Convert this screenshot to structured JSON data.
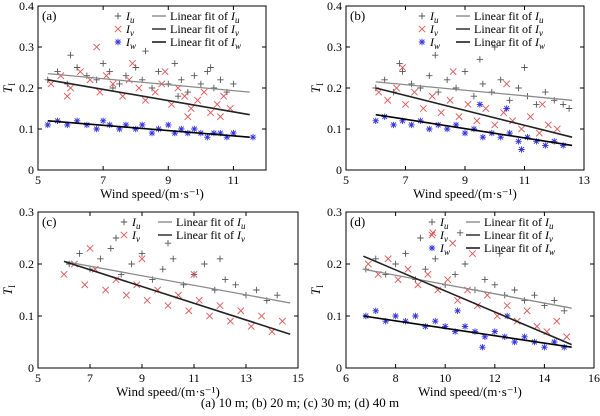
{
  "figure": {
    "caption": "(a) 10 m; (b) 20 m; (c) 30 m; (d) 40 m",
    "colors": {
      "u": "#555555",
      "v": "#e05555",
      "w": "#3333dd",
      "fit_u": "#8a8a8a",
      "fit_v": "#222222",
      "fit_w": "#000000"
    }
  },
  "chart_data": [
    {
      "panel": "(a)",
      "type": "scatter",
      "xlabel": "Wind speed/(m·s⁻¹)",
      "ylabel": "T",
      "ylabel_sub": "I",
      "xlim": [
        5,
        12
      ],
      "ylim": [
        0,
        0.4
      ],
      "xticks": [
        5,
        7,
        9,
        11
      ],
      "yticks": [
        0,
        0.1,
        0.2,
        0.3,
        0.4
      ],
      "legend": [
        {
          "key": "u",
          "marker": "+",
          "label": "I",
          "sub": "u",
          "fit": "Linear fit of I",
          "fit_sub": "u"
        },
        {
          "key": "v",
          "marker": "×",
          "label": "I",
          "sub": "v",
          "fit": "Linear fit of I",
          "fit_sub": "v"
        },
        {
          "key": "w",
          "marker": "*",
          "label": "I",
          "sub": "w",
          "fit": "Linear fit of I",
          "fit_sub": "w"
        }
      ],
      "series": [
        {
          "key": "u",
          "marker": "+",
          "x": [
            5.3,
            5.6,
            5.9,
            6.2,
            6.5,
            6.8,
            7.0,
            7.2,
            7.5,
            7.7,
            8.0,
            8.2,
            8.5,
            8.7,
            9.0,
            9.2,
            9.4,
            9.6,
            9.8,
            10.0,
            10.2,
            10.4,
            10.6,
            10.8,
            11.0,
            6.0,
            7.3,
            8.3,
            9.3,
            10.3
          ],
          "y": [
            0.22,
            0.24,
            0.21,
            0.25,
            0.23,
            0.22,
            0.26,
            0.24,
            0.21,
            0.23,
            0.25,
            0.22,
            0.2,
            0.24,
            0.21,
            0.26,
            0.22,
            0.19,
            0.23,
            0.21,
            0.24,
            0.2,
            0.22,
            0.19,
            0.21,
            0.28,
            0.2,
            0.29,
            0.18,
            0.25
          ]
        },
        {
          "key": "v",
          "marker": "×",
          "x": [
            5.4,
            5.7,
            6.0,
            6.3,
            6.6,
            6.9,
            7.1,
            7.3,
            7.6,
            7.8,
            8.1,
            8.3,
            8.6,
            8.8,
            9.1,
            9.3,
            9.5,
            9.7,
            9.9,
            10.1,
            10.3,
            10.5,
            10.7,
            10.9,
            6.8,
            7.9,
            8.9,
            9.6,
            10.6,
            5.9
          ],
          "y": [
            0.21,
            0.23,
            0.2,
            0.24,
            0.22,
            0.19,
            0.23,
            0.21,
            0.18,
            0.22,
            0.2,
            0.17,
            0.19,
            0.21,
            0.16,
            0.2,
            0.18,
            0.15,
            0.17,
            0.19,
            0.14,
            0.16,
            0.18,
            0.15,
            0.3,
            0.26,
            0.24,
            0.13,
            0.13,
            0.18
          ]
        },
        {
          "key": "w",
          "marker": "*",
          "x": [
            5.3,
            5.6,
            5.9,
            6.2,
            6.5,
            6.8,
            7.0,
            7.2,
            7.5,
            7.7,
            8.0,
            8.2,
            8.5,
            8.7,
            9.0,
            9.2,
            9.4,
            9.6,
            9.8,
            10.0,
            10.2,
            10.4,
            10.6,
            10.8,
            11.0,
            11.6
          ],
          "y": [
            0.11,
            0.12,
            0.11,
            0.12,
            0.11,
            0.1,
            0.12,
            0.11,
            0.1,
            0.11,
            0.1,
            0.11,
            0.09,
            0.1,
            0.11,
            0.09,
            0.1,
            0.09,
            0.1,
            0.09,
            0.08,
            0.09,
            0.09,
            0.08,
            0.09,
            0.08
          ]
        }
      ],
      "fits": [
        {
          "key": "u",
          "x": [
            5.3,
            11.5
          ],
          "y": [
            0.235,
            0.19
          ]
        },
        {
          "key": "v",
          "x": [
            5.3,
            11.5
          ],
          "y": [
            0.22,
            0.135
          ]
        },
        {
          "key": "w",
          "x": [
            5.3,
            11.5
          ],
          "y": [
            0.12,
            0.08
          ]
        }
      ]
    },
    {
      "panel": "(b)",
      "type": "scatter",
      "xlabel": "Wind speed/(m·s⁻¹)",
      "ylabel": "T",
      "ylabel_sub": "I",
      "xlim": [
        5,
        13
      ],
      "ylim": [
        0,
        0.4
      ],
      "xticks": [
        5,
        7,
        9,
        11,
        13
      ],
      "yticks": [
        0,
        0.1,
        0.2,
        0.3,
        0.4
      ],
      "legend": [
        {
          "key": "u",
          "marker": "+",
          "label": "I",
          "sub": "u",
          "fit": "Linear fit of I",
          "fit_sub": "u"
        },
        {
          "key": "v",
          "marker": "×",
          "label": "I",
          "sub": "v",
          "fit": "Linear fit of I",
          "fit_sub": "v"
        },
        {
          "key": "w",
          "marker": "*",
          "label": "I",
          "sub": "w",
          "fit": "Linear fit of I",
          "fit_sub": "w"
        }
      ],
      "series": [
        {
          "key": "u",
          "marker": "+",
          "x": [
            6.0,
            6.3,
            6.6,
            6.9,
            7.2,
            7.5,
            7.8,
            8.1,
            8.4,
            8.7,
            9.0,
            9.3,
            9.6,
            9.9,
            10.2,
            10.5,
            10.8,
            11.1,
            11.4,
            11.7,
            12.0,
            12.3,
            8.0,
            10.0,
            11.0,
            6.8,
            9.5,
            12.5
          ],
          "y": [
            0.2,
            0.22,
            0.19,
            0.24,
            0.21,
            0.2,
            0.23,
            0.19,
            0.22,
            0.2,
            0.24,
            0.18,
            0.21,
            0.19,
            0.22,
            0.17,
            0.2,
            0.18,
            0.16,
            0.19,
            0.17,
            0.16,
            0.28,
            0.3,
            0.25,
            0.26,
            0.27,
            0.15
          ]
        },
        {
          "key": "v",
          "marker": "×",
          "x": [
            6.1,
            6.4,
            6.7,
            7.0,
            7.3,
            7.6,
            7.9,
            8.2,
            8.5,
            8.8,
            9.1,
            9.4,
            9.7,
            10.0,
            10.3,
            10.6,
            10.9,
            11.2,
            11.5,
            11.8,
            12.1,
            6.9,
            8.6,
            10.4,
            11.6
          ],
          "y": [
            0.19,
            0.17,
            0.2,
            0.16,
            0.19,
            0.15,
            0.18,
            0.14,
            0.17,
            0.13,
            0.16,
            0.12,
            0.15,
            0.11,
            0.14,
            0.12,
            0.1,
            0.13,
            0.09,
            0.11,
            0.1,
            0.25,
            0.24,
            0.21,
            0.16
          ]
        },
        {
          "key": "w",
          "marker": "*",
          "x": [
            6.0,
            6.3,
            6.6,
            6.9,
            7.2,
            7.5,
            7.8,
            8.1,
            8.4,
            8.7,
            9.0,
            9.3,
            9.6,
            9.9,
            10.2,
            10.5,
            10.8,
            11.1,
            11.4,
            11.7,
            12.0,
            12.3,
            9.5,
            10.4,
            10.9
          ],
          "y": [
            0.12,
            0.13,
            0.11,
            0.12,
            0.11,
            0.12,
            0.1,
            0.11,
            0.1,
            0.11,
            0.09,
            0.1,
            0.08,
            0.09,
            0.08,
            0.09,
            0.07,
            0.08,
            0.07,
            0.06,
            0.07,
            0.06,
            0.16,
            0.15,
            0.05
          ]
        }
      ],
      "fits": [
        {
          "key": "u",
          "x": [
            6.0,
            12.6
          ],
          "y": [
            0.215,
            0.17
          ]
        },
        {
          "key": "v",
          "x": [
            6.0,
            12.6
          ],
          "y": [
            0.2,
            0.08
          ]
        },
        {
          "key": "w",
          "x": [
            6.0,
            12.6
          ],
          "y": [
            0.135,
            0.06
          ]
        }
      ]
    },
    {
      "panel": "(c)",
      "type": "scatter",
      "xlabel": "Wind speed/(m·s⁻¹)",
      "ylabel": "T",
      "ylabel_sub": "I",
      "xlim": [
        5,
        15
      ],
      "ylim": [
        0,
        0.3
      ],
      "xticks": [
        5,
        7,
        9,
        11,
        13,
        15
      ],
      "yticks": [
        0,
        0.1,
        0.2,
        0.3
      ],
      "legend": [
        {
          "key": "u",
          "marker": "+",
          "label": "I",
          "sub": "u",
          "fit": "Linear fit of I",
          "fit_sub": "u"
        },
        {
          "key": "v",
          "marker": "×",
          "label": "I",
          "sub": "v",
          "fit": "Linear fit of I",
          "fit_sub": "v"
        }
      ],
      "series": [
        {
          "key": "u",
          "marker": "+",
          "x": [
            6.2,
            6.6,
            7.0,
            7.4,
            7.8,
            8.2,
            8.6,
            9.0,
            9.4,
            9.8,
            10.2,
            10.6,
            11.0,
            11.4,
            11.8,
            12.2,
            12.6,
            13.0,
            13.4,
            13.8,
            14.2,
            8.0,
            10.0,
            12.0
          ],
          "y": [
            0.2,
            0.22,
            0.19,
            0.21,
            0.23,
            0.18,
            0.2,
            0.22,
            0.17,
            0.19,
            0.21,
            0.16,
            0.18,
            0.2,
            0.15,
            0.17,
            0.16,
            0.14,
            0.15,
            0.13,
            0.14,
            0.25,
            0.24,
            0.21
          ]
        },
        {
          "key": "v",
          "marker": "×",
          "x": [
            6.0,
            6.4,
            6.8,
            7.2,
            7.6,
            8.0,
            8.4,
            8.8,
            9.2,
            9.6,
            10.0,
            10.4,
            10.8,
            11.2,
            11.6,
            12.0,
            12.4,
            12.8,
            13.2,
            13.6,
            14.0,
            14.4,
            7.0,
            9.0,
            11.0
          ],
          "y": [
            0.18,
            0.2,
            0.16,
            0.19,
            0.15,
            0.17,
            0.14,
            0.16,
            0.13,
            0.15,
            0.12,
            0.14,
            0.11,
            0.13,
            0.1,
            0.12,
            0.09,
            0.11,
            0.08,
            0.1,
            0.07,
            0.09,
            0.23,
            0.21,
            0.18
          ]
        }
      ],
      "fits": [
        {
          "key": "u",
          "x": [
            6.0,
            14.7
          ],
          "y": [
            0.205,
            0.125
          ]
        },
        {
          "key": "v",
          "x": [
            6.0,
            14.7
          ],
          "y": [
            0.205,
            0.065
          ]
        }
      ]
    },
    {
      "panel": "(d)",
      "type": "scatter",
      "xlabel": "Wind speed/(m·s⁻¹)",
      "ylabel": "T",
      "ylabel_sub": "I",
      "xlim": [
        6,
        16
      ],
      "ylim": [
        0,
        0.3
      ],
      "xticks": [
        6,
        8,
        10,
        12,
        14,
        16
      ],
      "yticks": [
        0,
        0.1,
        0.2,
        0.3
      ],
      "legend": [
        {
          "key": "u",
          "marker": "+",
          "label": "I",
          "sub": "u",
          "fit": "Linear fit of I",
          "fit_sub": "u"
        },
        {
          "key": "v",
          "marker": "×",
          "label": "I",
          "sub": "v",
          "fit": "Linear fit of I",
          "fit_sub": "v"
        },
        {
          "key": "w",
          "marker": "*",
          "label": "I",
          "sub": "w",
          "fit": "Linear fit of I",
          "fit_sub": "w"
        }
      ],
      "series": [
        {
          "key": "u",
          "marker": "+",
          "x": [
            6.8,
            7.2,
            7.6,
            8.0,
            8.4,
            8.8,
            9.2,
            9.6,
            10.0,
            10.4,
            10.8,
            11.2,
            11.6,
            12.0,
            12.4,
            12.8,
            13.2,
            13.6,
            14.0,
            14.4,
            14.8,
            9.0,
            10.6,
            12.2
          ],
          "y": [
            0.19,
            0.21,
            0.18,
            0.2,
            0.22,
            0.17,
            0.19,
            0.21,
            0.16,
            0.18,
            0.2,
            0.15,
            0.17,
            0.16,
            0.14,
            0.15,
            0.13,
            0.14,
            0.12,
            0.13,
            0.11,
            0.25,
            0.26,
            0.22
          ]
        },
        {
          "key": "v",
          "marker": "×",
          "x": [
            6.9,
            7.3,
            7.7,
            8.1,
            8.5,
            8.9,
            9.3,
            9.7,
            10.1,
            10.5,
            10.9,
            11.3,
            11.7,
            12.1,
            12.5,
            12.9,
            13.3,
            13.7,
            14.1,
            14.5,
            14.9,
            9.5,
            10.3,
            11.1
          ],
          "y": [
            0.2,
            0.18,
            0.21,
            0.17,
            0.19,
            0.16,
            0.18,
            0.15,
            0.17,
            0.13,
            0.15,
            0.12,
            0.14,
            0.1,
            0.12,
            0.09,
            0.11,
            0.08,
            0.07,
            0.09,
            0.06,
            0.26,
            0.24,
            0.22
          ]
        },
        {
          "key": "w",
          "marker": "*",
          "x": [
            6.8,
            7.2,
            7.6,
            8.0,
            8.4,
            8.8,
            9.2,
            9.6,
            10.0,
            10.4,
            10.8,
            11.2,
            11.6,
            12.0,
            12.4,
            12.8,
            13.2,
            13.6,
            14.0,
            14.4,
            14.8,
            10.5,
            11.5,
            12.5
          ],
          "y": [
            0.1,
            0.11,
            0.09,
            0.1,
            0.09,
            0.1,
            0.08,
            0.09,
            0.08,
            0.07,
            0.08,
            0.07,
            0.06,
            0.07,
            0.06,
            0.05,
            0.06,
            0.05,
            0.04,
            0.05,
            0.04,
            0.11,
            0.04,
            0.1
          ]
        }
      ],
      "fits": [
        {
          "key": "u",
          "x": [
            6.7,
            15.1
          ],
          "y": [
            0.19,
            0.115
          ]
        },
        {
          "key": "v",
          "x": [
            6.7,
            15.1
          ],
          "y": [
            0.215,
            0.045
          ]
        },
        {
          "key": "w",
          "x": [
            6.7,
            15.1
          ],
          "y": [
            0.1,
            0.04
          ]
        }
      ]
    }
  ]
}
